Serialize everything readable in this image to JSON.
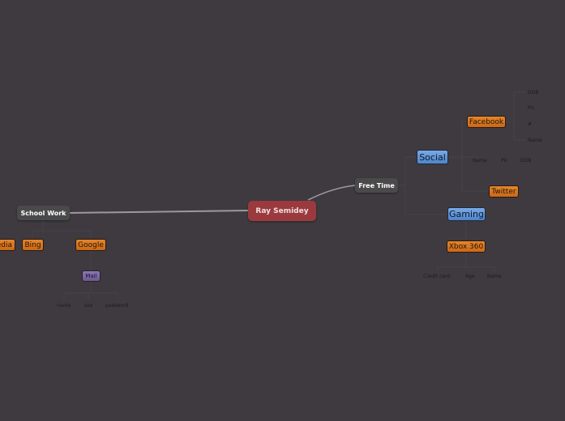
{
  "central": "Ray Semidey",
  "main_topics": {
    "school_work": "School Work",
    "free_time": "Free Time"
  },
  "school": {
    "media": "edia",
    "bing": "Bing",
    "google": "Google",
    "mail": "Mail",
    "mail_fields": [
      "name",
      "sex",
      "password"
    ]
  },
  "free": {
    "social": "Social",
    "facebook": "Facebook",
    "facebook_fields": [
      "DOB",
      "Pic",
      "#",
      "Name"
    ],
    "social_fields": [
      "Name",
      "Pic",
      "DOB"
    ],
    "twitter": "Twitter",
    "gaming": "Gaming",
    "xbox": "Xbox 360",
    "xbox_fields": [
      "Credit card",
      "Age",
      "Name"
    ]
  },
  "colors": {
    "background": "#3e3a40",
    "central": "#9a3a3e",
    "main": "#4b4a4a",
    "orange": "#d6741f",
    "blue": "#6496d8",
    "purple": "#7c68a0"
  }
}
